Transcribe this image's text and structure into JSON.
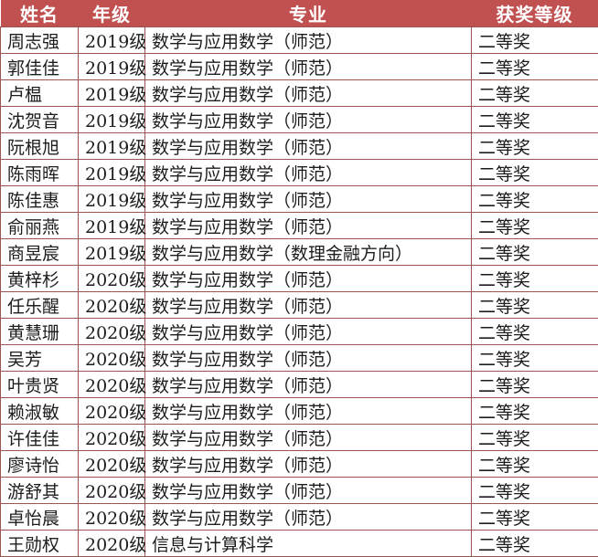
{
  "colors": {
    "header_background": "#c05150",
    "header_text": "#ffffff",
    "border": "#9a5550",
    "cell_text": "#1c1c1c",
    "row_background": "#ffffff"
  },
  "chart_data": {
    "type": "table",
    "title": "",
    "columns": [
      "姓名",
      "年级",
      "专业",
      "获奖等级"
    ],
    "rows": [
      [
        "周志强",
        "2019级",
        "数学与应用数学（师范）",
        "二等奖"
      ],
      [
        "郭佳佳",
        "2019级",
        "数学与应用数学（师范）",
        "二等奖"
      ],
      [
        "卢榅",
        "2019级",
        "数学与应用数学（师范）",
        "二等奖"
      ],
      [
        "沈贺音",
        "2019级",
        "数学与应用数学（师范）",
        "二等奖"
      ],
      [
        "阮根旭",
        "2019级",
        "数学与应用数学（师范）",
        "二等奖"
      ],
      [
        "陈雨晖",
        "2019级",
        "数学与应用数学（师范）",
        "二等奖"
      ],
      [
        "陈佳惠",
        "2019级",
        "数学与应用数学（师范）",
        "二等奖"
      ],
      [
        "俞丽燕",
        "2019级",
        "数学与应用数学（师范）",
        "二等奖"
      ],
      [
        "商昱宸",
        "2019级",
        "数学与应用数学（数理金融方向）",
        "二等奖"
      ],
      [
        "黄梓杉",
        "2020级",
        "数学与应用数学（师范）",
        "二等奖"
      ],
      [
        "任乐醒",
        "2020级",
        "数学与应用数学（师范）",
        "二等奖"
      ],
      [
        "黄慧珊",
        "2020级",
        "数学与应用数学（师范）",
        "二等奖"
      ],
      [
        "吴芳",
        "2020级",
        "数学与应用数学（师范）",
        "二等奖"
      ],
      [
        "叶贵贤",
        "2020级",
        "数学与应用数学（师范）",
        "二等奖"
      ],
      [
        "赖淑敏",
        "2020级",
        "数学与应用数学（师范）",
        "二等奖"
      ],
      [
        "许佳佳",
        "2020级",
        "数学与应用数学（师范）",
        "二等奖"
      ],
      [
        "廖诗怡",
        "2020级",
        "数学与应用数学（师范）",
        "二等奖"
      ],
      [
        "游舒其",
        "2020级",
        "数学与应用数学（师范）",
        "二等奖"
      ],
      [
        "卓怡晨",
        "2020级",
        "数学与应用数学（师范）",
        "二等奖"
      ],
      [
        "王勋权",
        "2020级",
        "信息与计算科学",
        "二等奖"
      ]
    ]
  }
}
